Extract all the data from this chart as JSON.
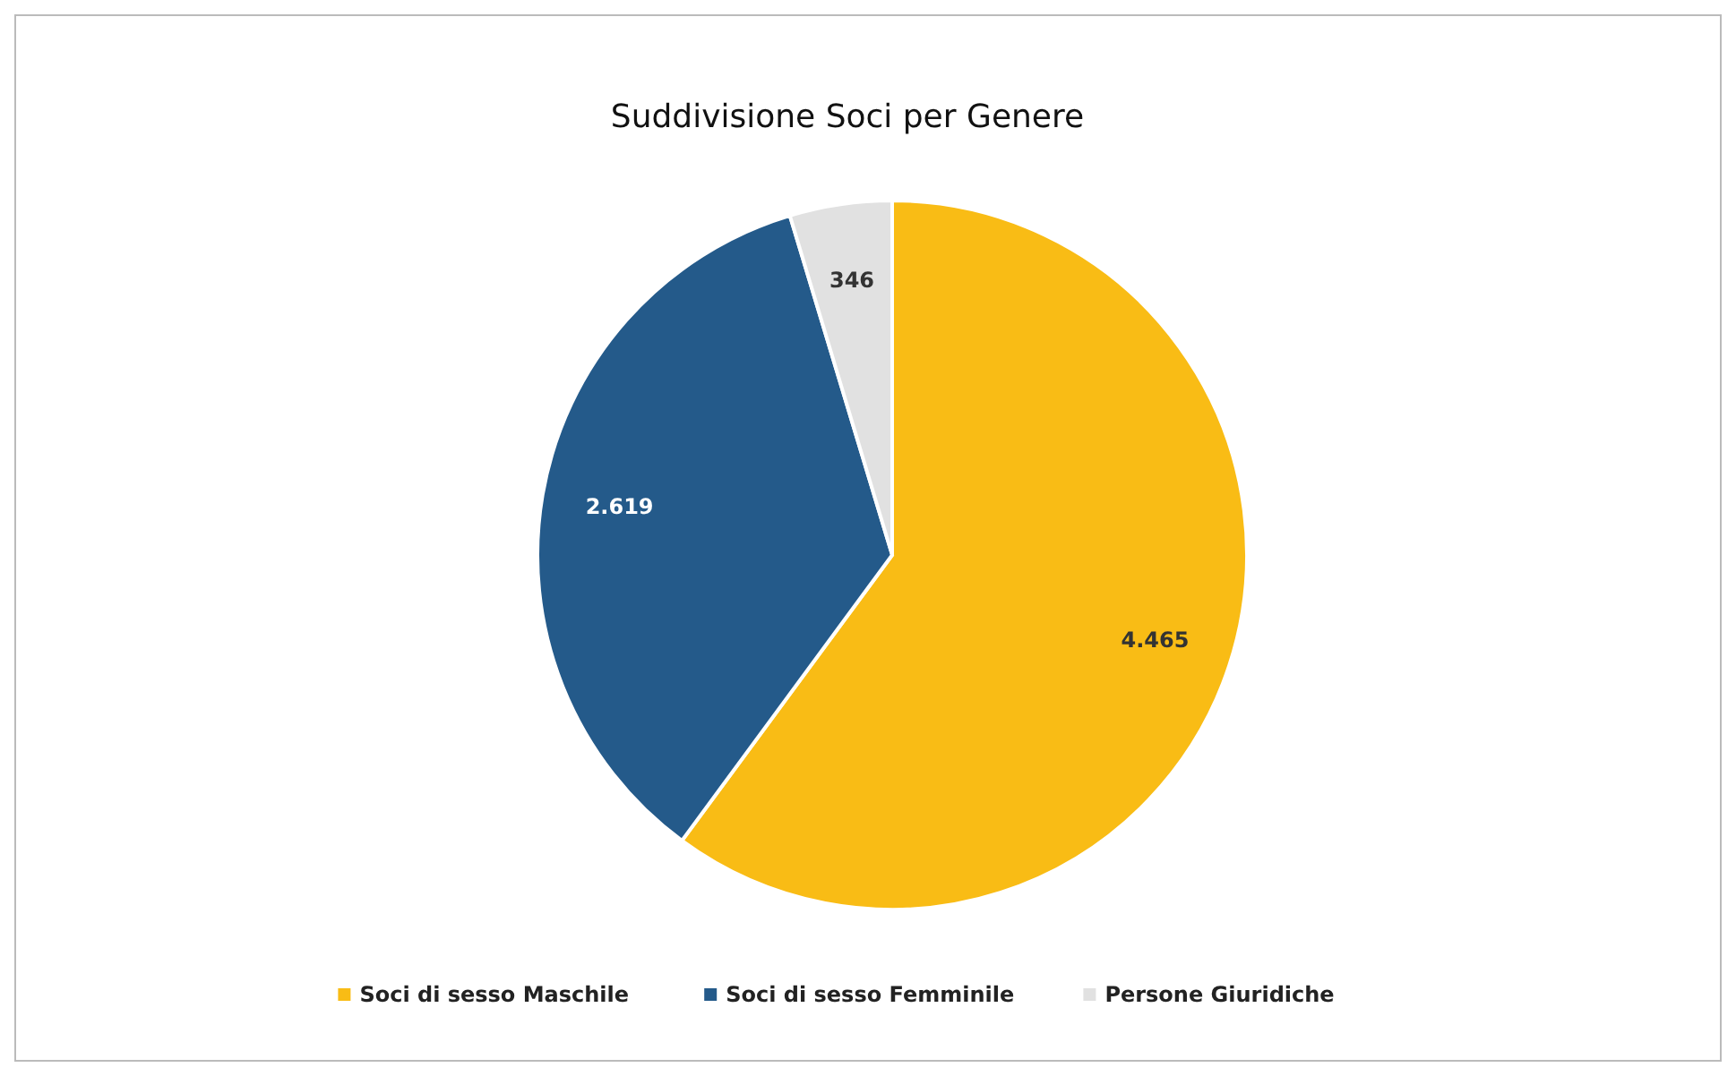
{
  "chart_data": {
    "type": "pie",
    "title": "Suddivisione Soci per Genere",
    "categories": [
      "Soci di sesso Maschile",
      "Soci di sesso Femminile",
      "Persone Giuridiche"
    ],
    "values": [
      4465,
      2619,
      346
    ],
    "colors": [
      "#f9bc15",
      "#245a8a",
      "#e1e1e1"
    ],
    "value_labels": [
      "4.465",
      "2.619",
      "346"
    ],
    "legend": "bottom"
  }
}
